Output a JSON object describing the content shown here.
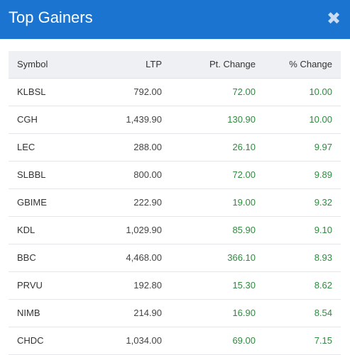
{
  "modal": {
    "title": "Top Gainers",
    "close_glyph": "✖"
  },
  "table": {
    "headers": {
      "symbol": "Symbol",
      "ltp": "LTP",
      "pt_change": "Pt. Change",
      "pct_change": "% Change"
    },
    "rows": [
      {
        "symbol": "KLBSL",
        "ltp": "792.00",
        "pt_change": "72.00",
        "pct_change": "10.00"
      },
      {
        "symbol": "CGH",
        "ltp": "1,439.90",
        "pt_change": "130.90",
        "pct_change": "10.00"
      },
      {
        "symbol": "LEC",
        "ltp": "288.00",
        "pt_change": "26.10",
        "pct_change": "9.97"
      },
      {
        "symbol": "SLBBL",
        "ltp": "800.00",
        "pt_change": "72.00",
        "pct_change": "9.89"
      },
      {
        "symbol": "GBIME",
        "ltp": "222.90",
        "pt_change": "19.00",
        "pct_change": "9.32"
      },
      {
        "symbol": "KDL",
        "ltp": "1,029.90",
        "pt_change": "85.90",
        "pct_change": "9.10"
      },
      {
        "symbol": "BBC",
        "ltp": "4,468.00",
        "pt_change": "366.10",
        "pct_change": "8.93"
      },
      {
        "symbol": "PRVU",
        "ltp": "192.80",
        "pt_change": "15.30",
        "pct_change": "8.62"
      },
      {
        "symbol": "NIMB",
        "ltp": "214.90",
        "pt_change": "16.90",
        "pct_change": "8.54"
      },
      {
        "symbol": "CHDC",
        "ltp": "1,034.00",
        "pt_change": "69.00",
        "pct_change": "7.15"
      }
    ]
  },
  "colors": {
    "header_bg": "#1b75d0",
    "positive": "#2e8b3e",
    "table_header_bg": "#eef0f3"
  },
  "icons": {
    "close": "close-icon"
  }
}
